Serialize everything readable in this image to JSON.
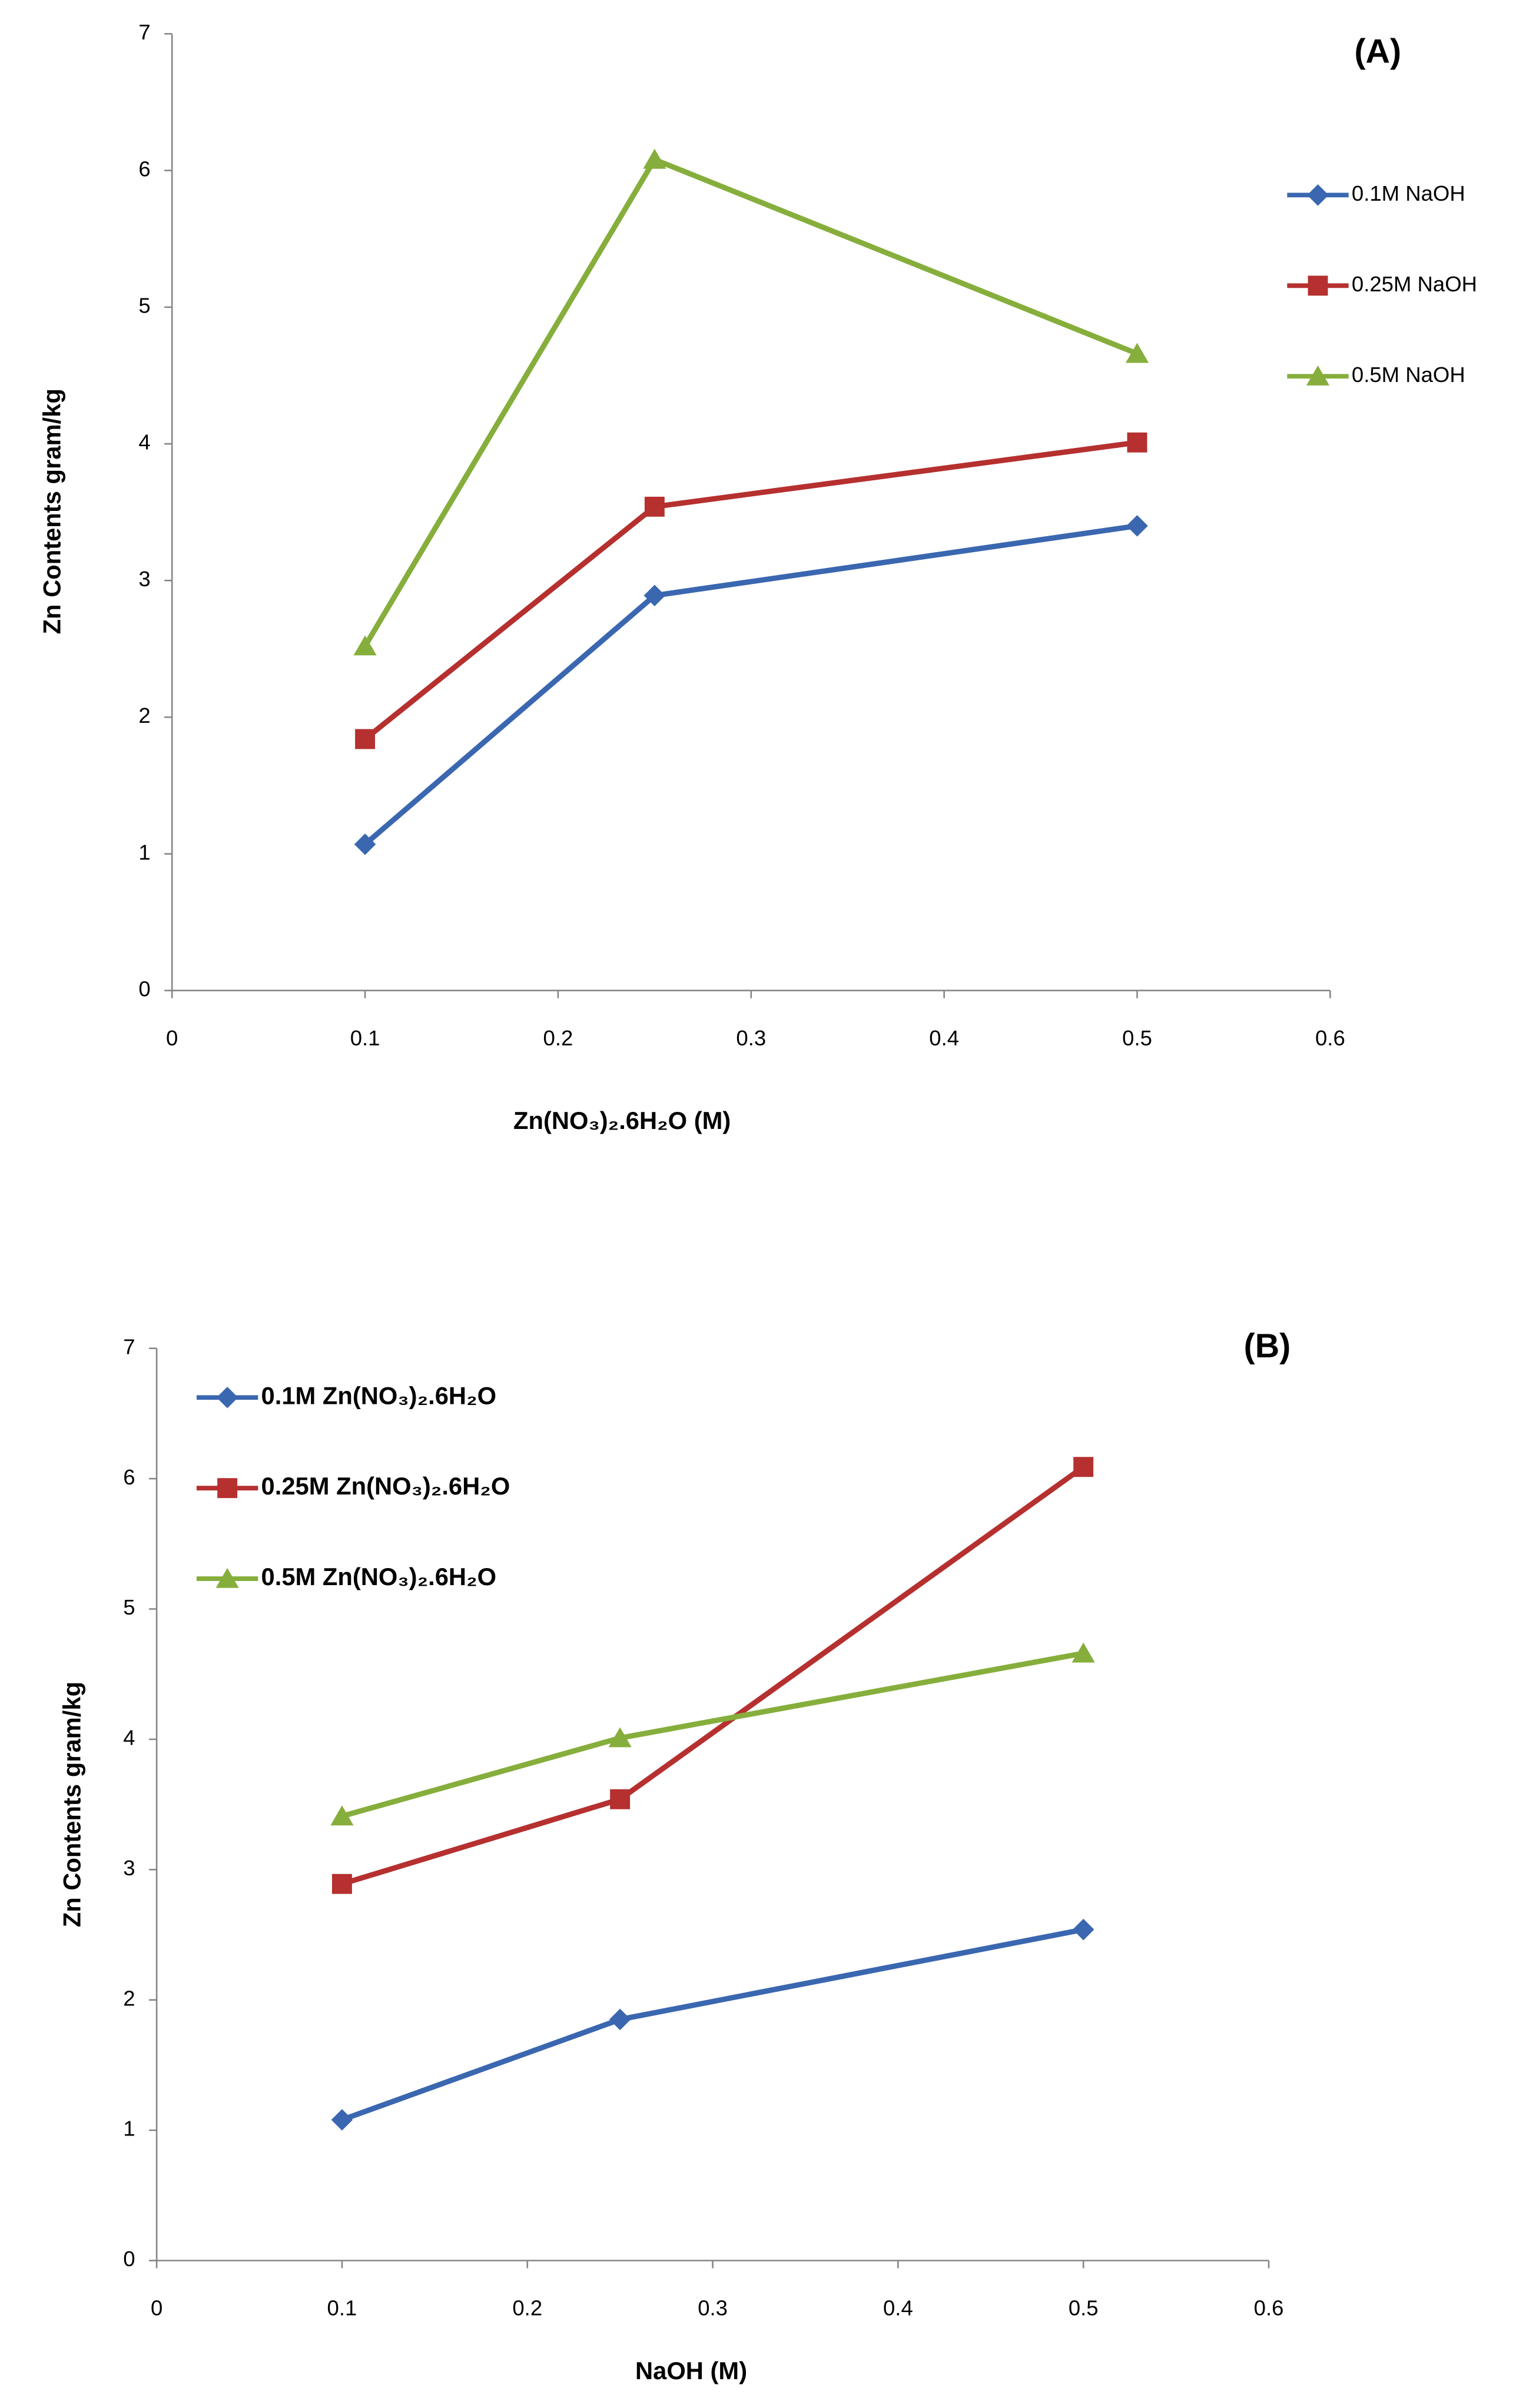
{
  "chart_data": [
    {
      "type": "line",
      "title": "(A)",
      "x_label": "Zn(NO₃)₂.6H₂O  (M)",
      "y_label": "Zn  Contents gram/kg",
      "x": [
        0.1,
        0.25,
        0.5
      ],
      "series": [
        {
          "name": "0.1M NaOH",
          "color": "#3a67b0",
          "marker": "diamond",
          "values": [
            1.07,
            2.89,
            3.4
          ]
        },
        {
          "name": "0.25M NaOH",
          "color": "#b5302f",
          "marker": "square",
          "values": [
            1.84,
            3.54,
            4.01
          ]
        },
        {
          "name": "0.5M NaOH",
          "color": "#86ae3c",
          "marker": "triangle",
          "values": [
            2.52,
            6.08,
            4.66
          ]
        }
      ],
      "xlim": [
        0,
        0.6
      ],
      "xticks": [
        0,
        0.1,
        0.2,
        0.3,
        0.4,
        0.5,
        0.6
      ],
      "ylim": [
        0,
        7
      ],
      "yticks": [
        0,
        1,
        2,
        3,
        4,
        5,
        6,
        7
      ],
      "grid": false,
      "legend": "right"
    },
    {
      "type": "line",
      "title": "(B)",
      "x_label": "NaOH  (M)",
      "y_label": "Zn  Contents gram/kg",
      "x": [
        0.1,
        0.25,
        0.5
      ],
      "series": [
        {
          "name": "0.1M Zn(NO₃)₂.6H₂O",
          "color": "#3a67b0",
          "marker": "diamond",
          "values": [
            1.08,
            1.85,
            2.54
          ]
        },
        {
          "name": "0.25M Zn(NO₃)₂.6H₂O",
          "color": "#b5302f",
          "marker": "square",
          "values": [
            2.89,
            3.54,
            6.09
          ]
        },
        {
          "name": "0.5M Zn(NO₃)₂.6H₂O",
          "color": "#86ae3c",
          "marker": "triangle",
          "values": [
            3.41,
            4.01,
            4.66
          ]
        }
      ],
      "xlim": [
        0,
        0.6
      ],
      "xticks": [
        0,
        0.1,
        0.2,
        0.3,
        0.4,
        0.5,
        0.6
      ],
      "ylim": [
        0,
        7
      ],
      "yticks": [
        0,
        1,
        2,
        3,
        4,
        5,
        6,
        7
      ],
      "grid": false,
      "legend": "top left"
    }
  ]
}
